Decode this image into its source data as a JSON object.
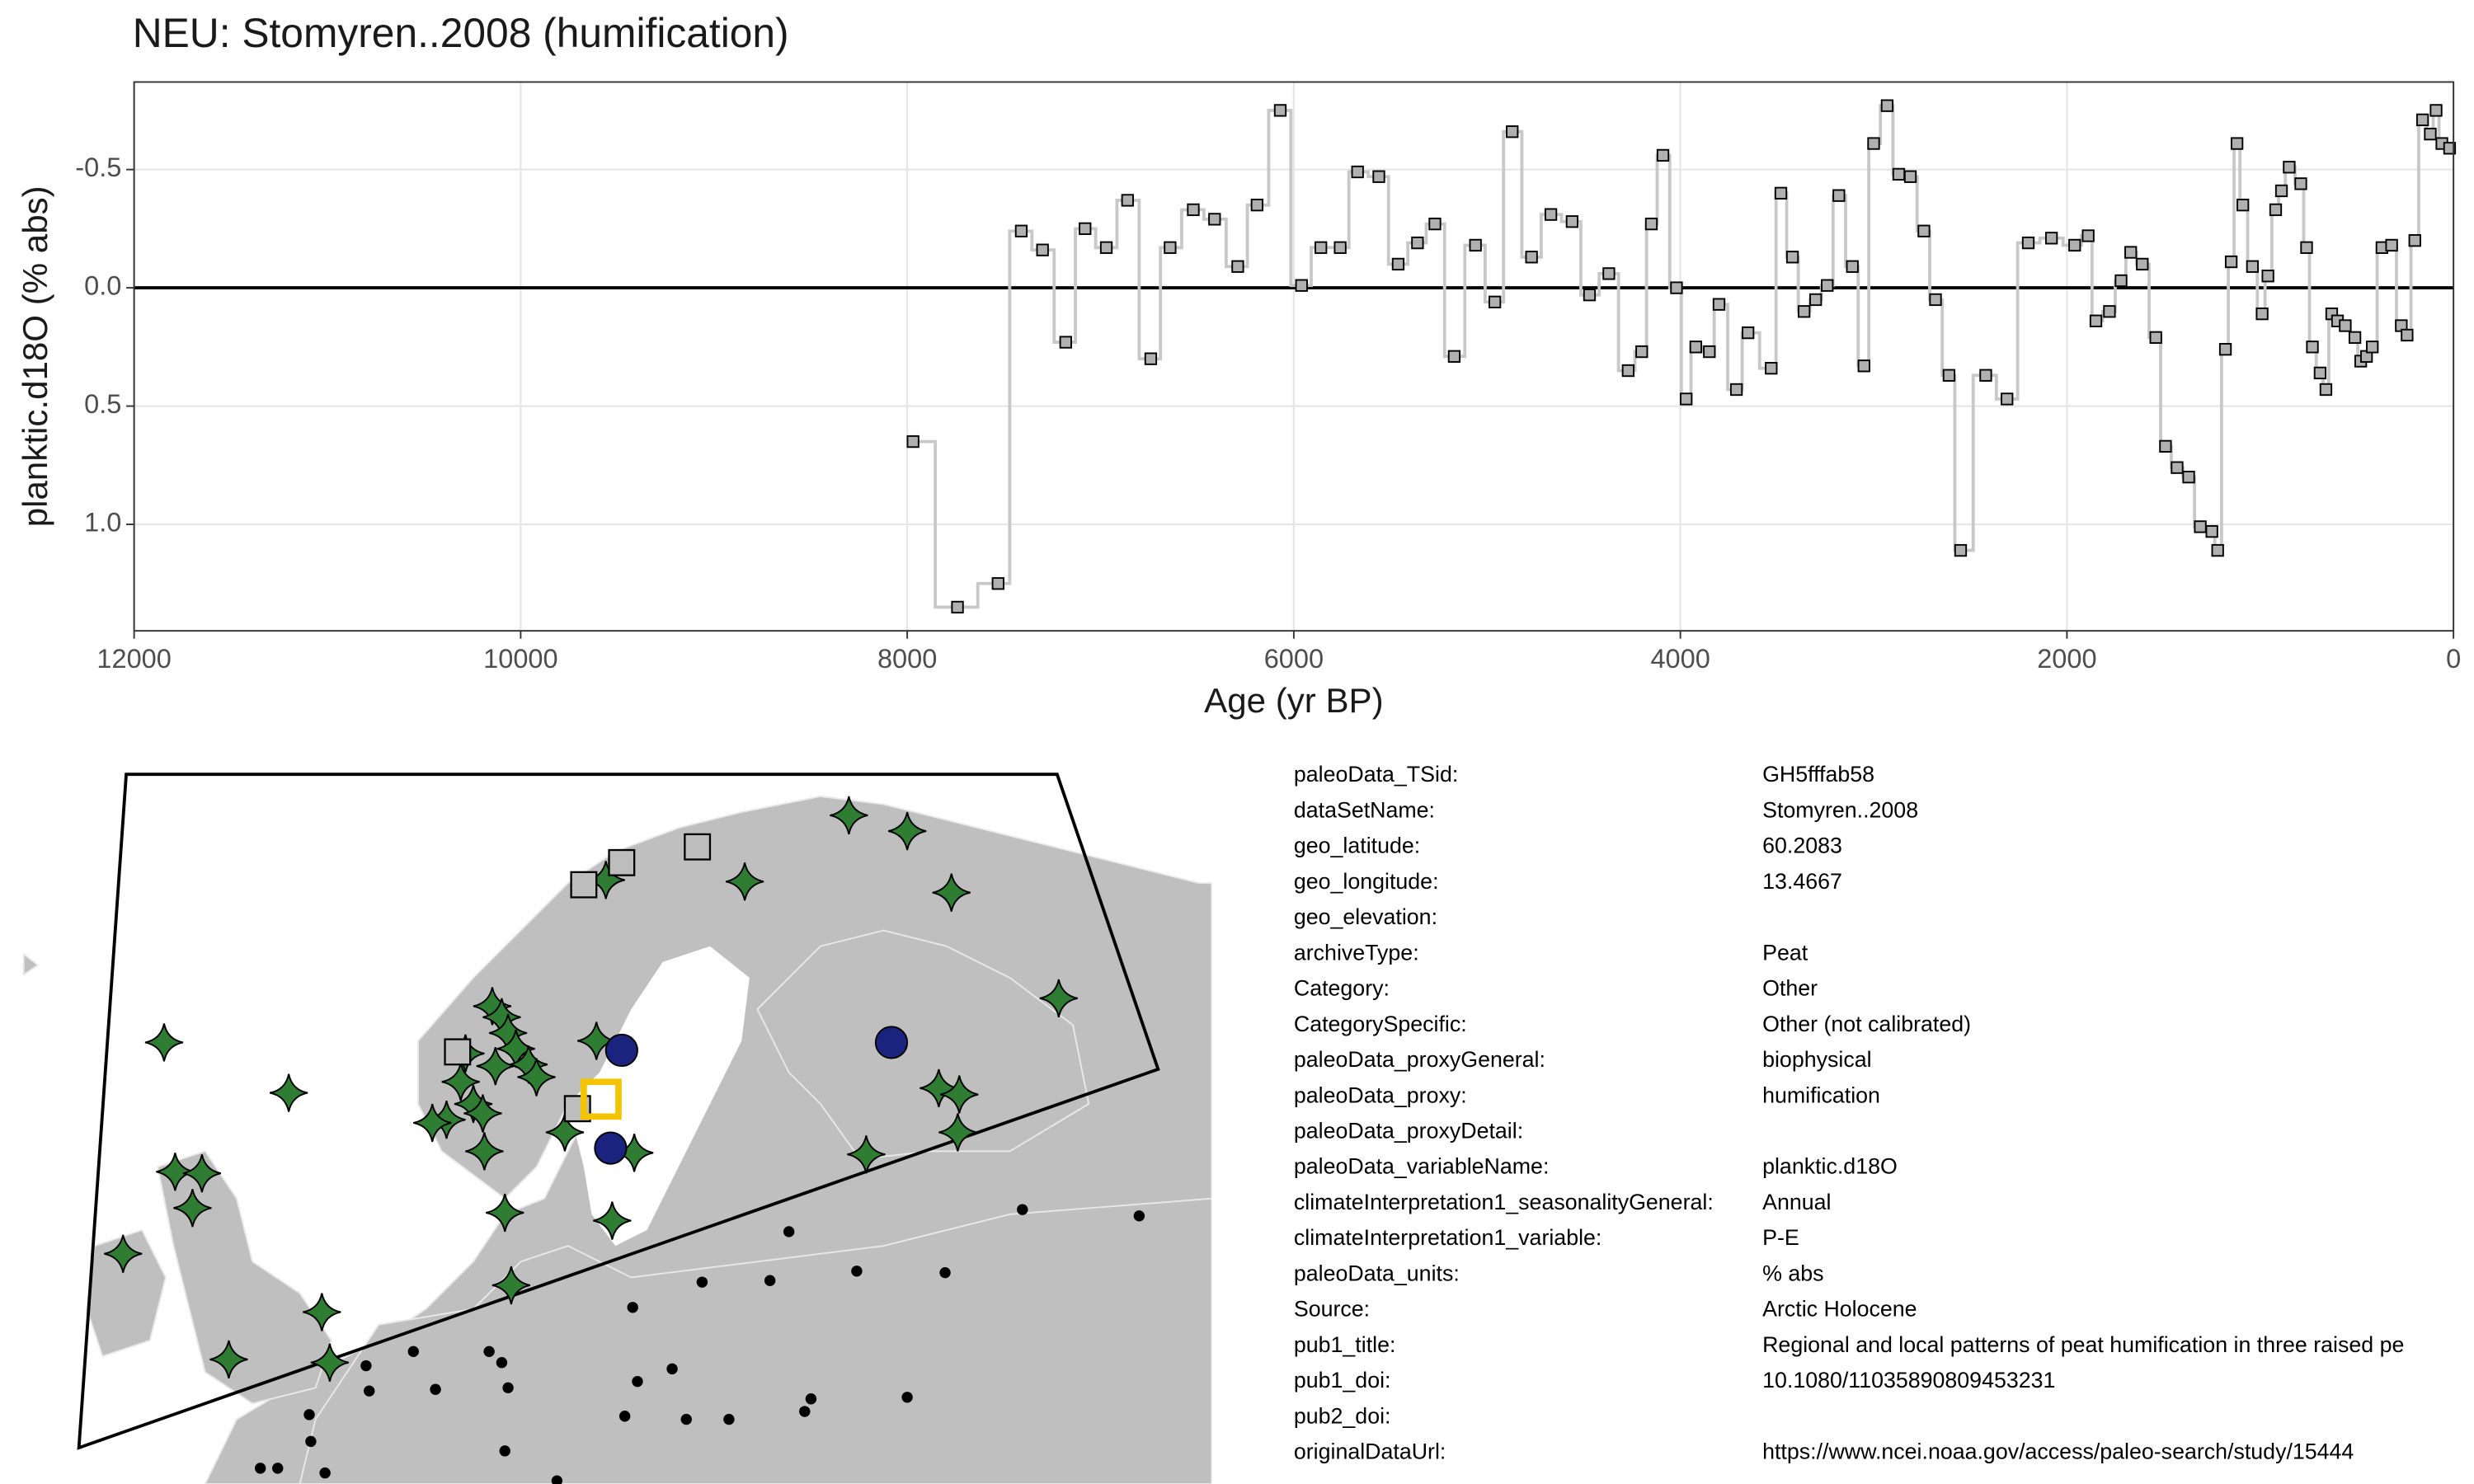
{
  "chart_data": {
    "type": "step",
    "title": "NEU: Stomyren..2008 (humification)",
    "x_label": "Age (yr BP)",
    "y_label": "planktic.d18O (% abs)",
    "x": [
      7970,
      7740,
      7530,
      7410,
      7300,
      7180,
      7080,
      6970,
      6860,
      6740,
      6640,
      6520,
      6410,
      6290,
      6190,
      6070,
      5960,
      5860,
      5760,
      5670,
      5560,
      5460,
      5360,
      5270,
      5170,
      5060,
      4960,
      4870,
      4770,
      4670,
      4560,
      4470,
      4370,
      4270,
      4200,
      4150,
      4090,
      4020,
      3970,
      3920,
      3850,
      3800,
      3710,
      3650,
      3530,
      3480,
      3420,
      3360,
      3300,
      3240,
      3180,
      3110,
      3050,
      3000,
      2930,
      2870,
      2810,
      2740,
      2680,
      2610,
      2550,
      2420,
      2310,
      2200,
      2080,
      1960,
      1890,
      1850,
      1780,
      1720,
      1670,
      1610,
      1540,
      1490,
      1430,
      1370,
      1310,
      1250,
      1220,
      1180,
      1150,
      1120,
      1090,
      1040,
      990,
      960,
      920,
      890,
      850,
      790,
      760,
      730,
      690,
      660,
      630,
      600,
      560,
      510,
      480,
      450,
      420,
      370,
      320,
      270,
      240,
      200,
      160,
      120,
      90,
      60,
      20
    ],
    "values": [
      0.65,
      1.35,
      1.25,
      -0.24,
      -0.16,
      0.23,
      -0.25,
      -0.17,
      -0.37,
      0.3,
      -0.17,
      -0.33,
      -0.29,
      -0.09,
      -0.35,
      -0.75,
      -0.01,
      -0.17,
      -0.17,
      -0.49,
      -0.47,
      -0.1,
      -0.19,
      -0.27,
      0.29,
      -0.18,
      0.06,
      -0.66,
      -0.13,
      -0.31,
      -0.28,
      0.03,
      -0.06,
      0.35,
      0.27,
      -0.27,
      -0.56,
      0.0,
      0.47,
      0.25,
      0.27,
      0.07,
      0.43,
      0.19,
      0.34,
      -0.4,
      -0.13,
      0.1,
      0.05,
      -0.01,
      -0.39,
      -0.09,
      0.33,
      -0.61,
      -0.77,
      -0.48,
      -0.47,
      -0.24,
      0.05,
      0.37,
      1.11,
      0.37,
      0.47,
      -0.19,
      -0.21,
      -0.18,
      -0.22,
      0.14,
      0.1,
      -0.03,
      -0.15,
      -0.1,
      0.21,
      0.67,
      0.76,
      0.8,
      1.01,
      1.03,
      1.11,
      0.26,
      -0.11,
      -0.61,
      -0.35,
      -0.09,
      0.11,
      -0.05,
      -0.33,
      -0.41,
      -0.51,
      -0.44,
      -0.17,
      0.25,
      0.36,
      0.43,
      0.11,
      0.14,
      0.16,
      0.21,
      0.31,
      0.29,
      0.25,
      -0.17,
      -0.18,
      0.16,
      0.2,
      -0.2,
      -0.71,
      -0.65,
      -0.75,
      -0.61,
      -0.59
    ],
    "step": "mid",
    "line_color": "#c8c8c8",
    "marker_color": "#b0b0b0",
    "reference_line": 0,
    "xlim": [
      12000,
      0
    ],
    "xticks": [
      12000,
      10000,
      8000,
      6000,
      4000,
      2000,
      0
    ],
    "ylim": [
      1.45,
      -0.87
    ],
    "yticks": [
      -0.5,
      {
        "value": 0,
        "label": "0.0"
      },
      0.5,
      {
        "value": 1,
        "label": "1.0"
      }
    ],
    "grid": true
  },
  "metadata": [
    {
      "key": "paleoData_TSid:",
      "value": "GH5fffab58"
    },
    {
      "key": "dataSetName:",
      "value": "Stomyren..2008"
    },
    {
      "key": "geo_latitude:",
      "value": "60.2083"
    },
    {
      "key": "geo_longitude:",
      "value": "13.4667"
    },
    {
      "key": "geo_elevation:"
    },
    {
      "key": "archiveType:",
      "value": "Peat"
    },
    {
      "key": "Category:",
      "value": "Other"
    },
    {
      "key": "CategorySpecific:",
      "value": "Other (not calibrated)"
    },
    {
      "key": "paleoData_proxyGeneral:",
      "value": "biophysical"
    },
    {
      "key": "paleoData_proxy:",
      "value": "humification"
    },
    {
      "key": "paleoData_proxyDetail:"
    },
    {
      "key": "paleoData_variableName:",
      "value": "planktic.d18O"
    },
    {
      "key": "climateInterpretation1_seasonalityGeneral:",
      "value": "Annual"
    },
    {
      "key": "climateInterpretation1_variable:",
      "value": "P-E"
    },
    {
      "key": "paleoData_units:",
      "value": "% abs"
    },
    {
      "key": "Source:",
      "value": "Arctic Holocene"
    },
    {
      "key": "pub1_title:",
      "value": "Regional and local patterns of peat humification in three raised pe"
    },
    {
      "key": "pub1_doi:",
      "value": "10.1080/11035890809453231"
    },
    {
      "key": "pub2_doi:"
    },
    {
      "key": "originalDataUrl:",
      "value": "https://www.ncei.noaa.gov/access/paleo-search/study/15444"
    }
  ]
}
